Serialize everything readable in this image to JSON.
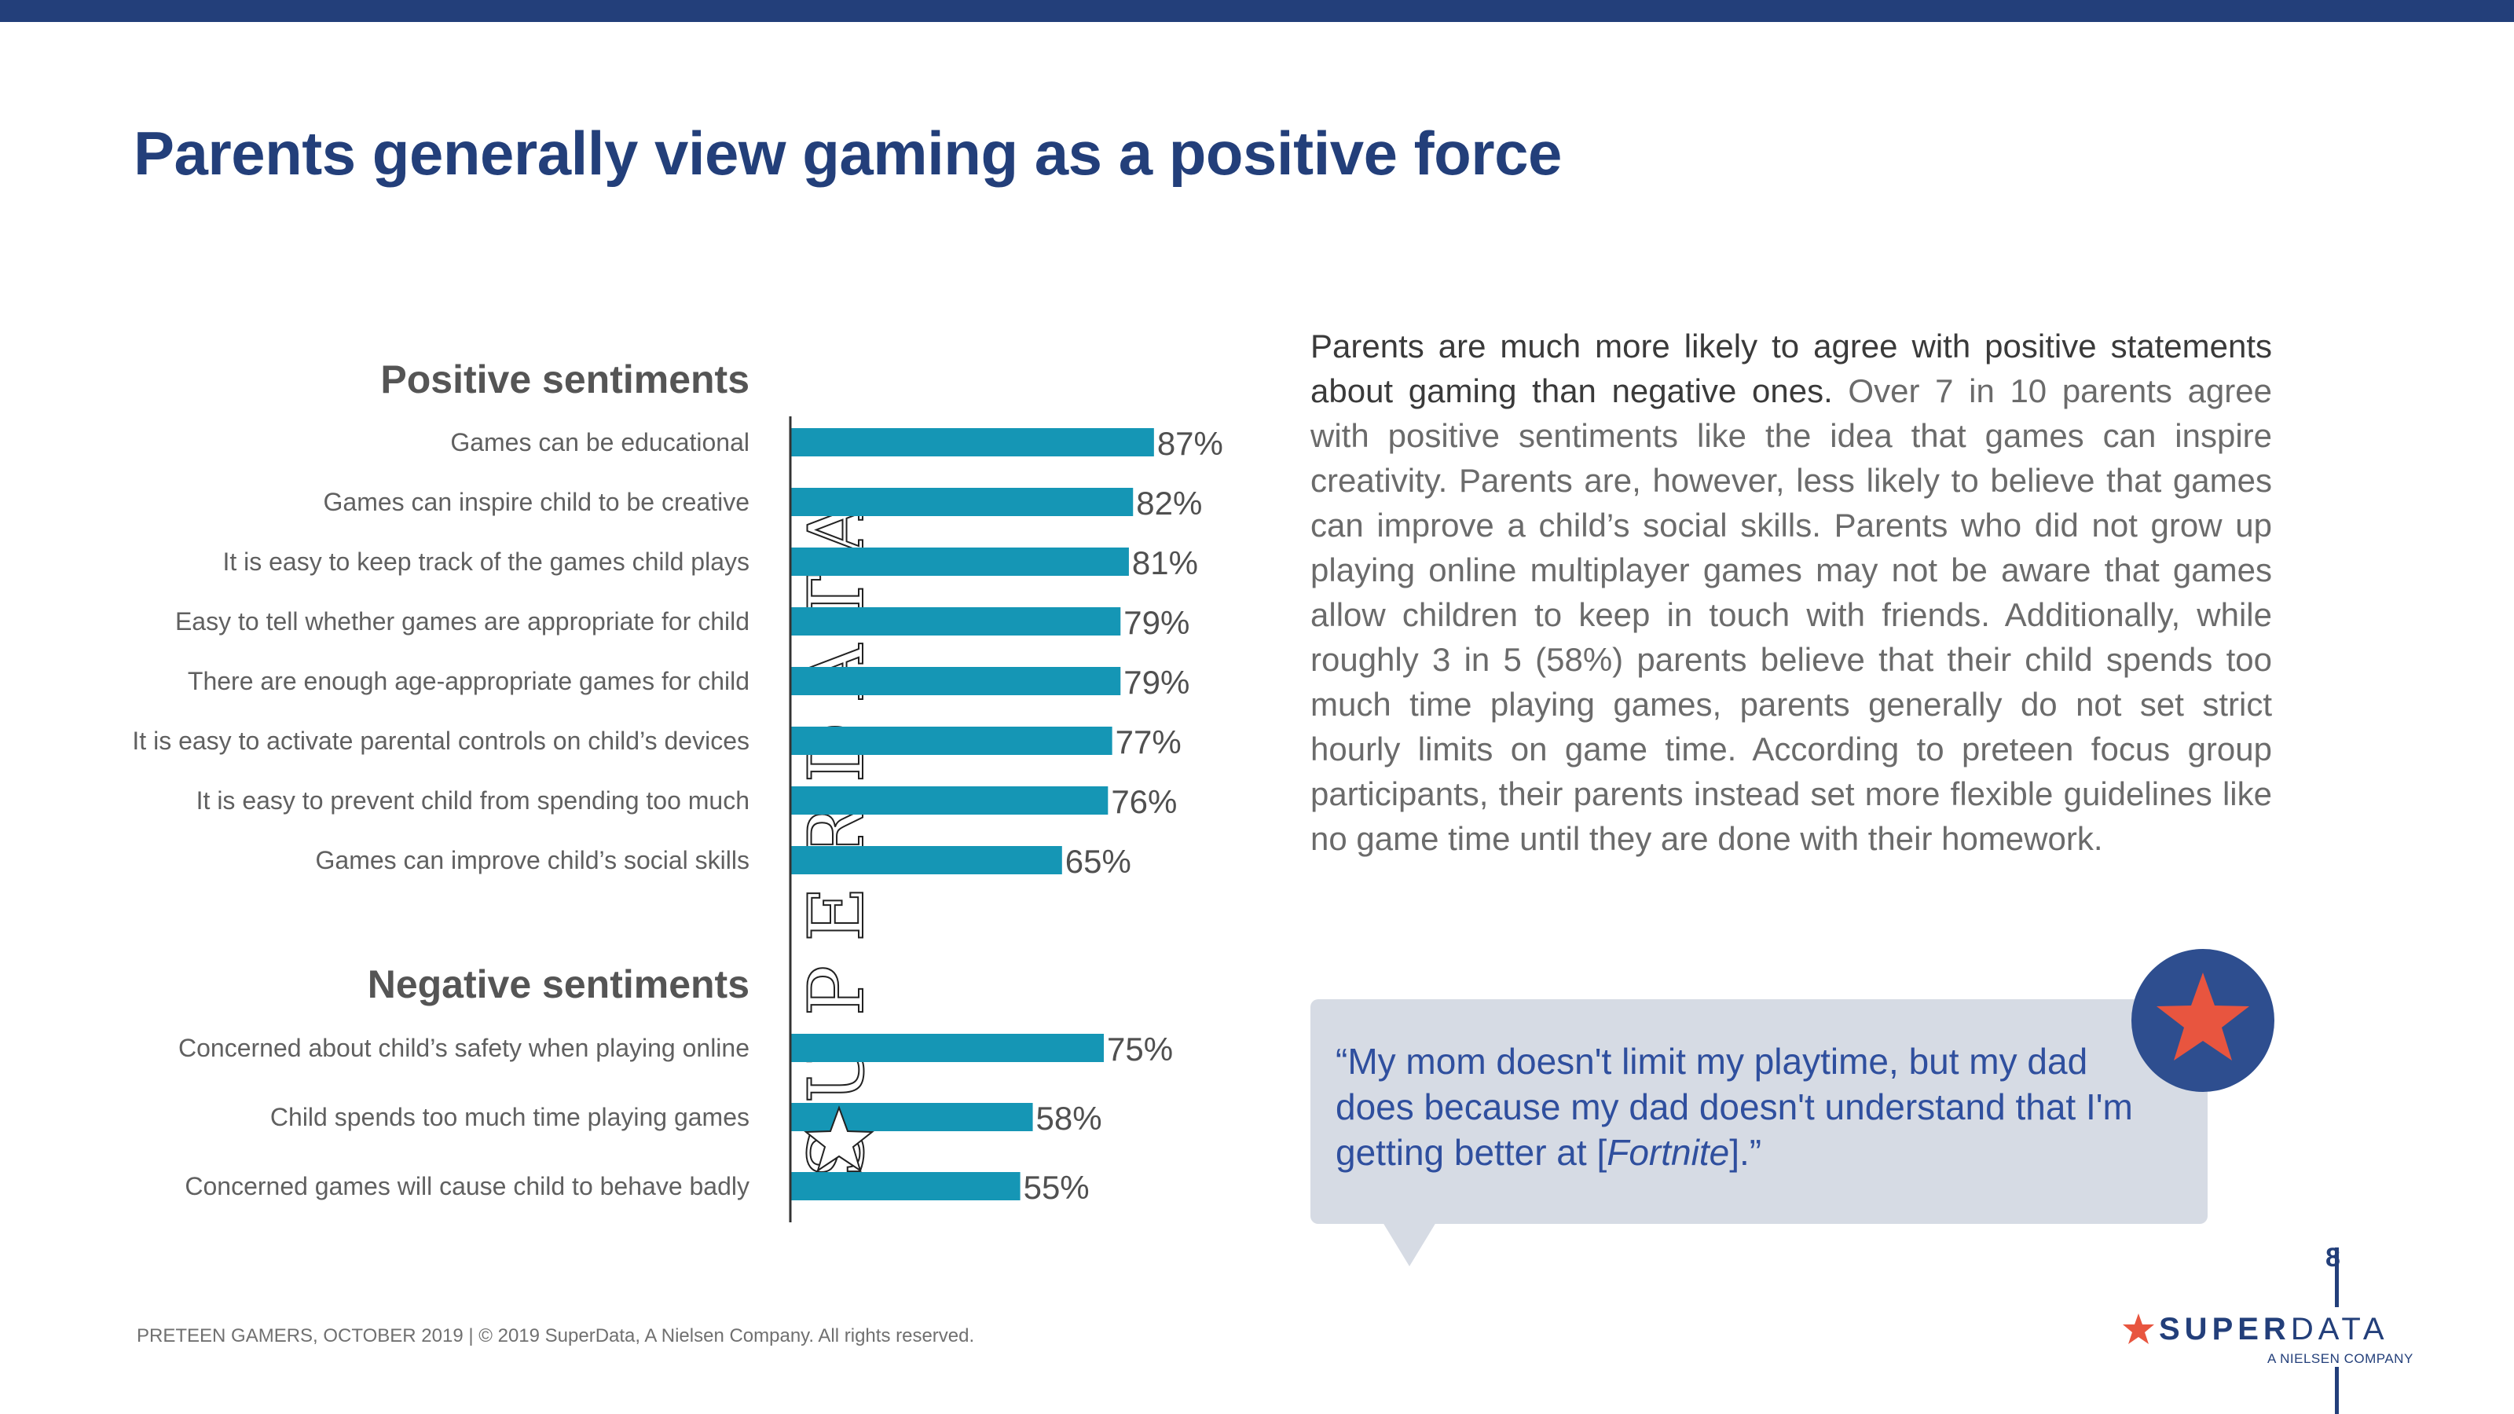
{
  "title": "Parents generally view gaming as a positive force",
  "chart_data": [
    {
      "type": "bar",
      "orientation": "horizontal",
      "title": "Positive sentiments",
      "categories": [
        "Games can be educational",
        "Games can inspire child to be creative",
        "It is easy to keep track of the games child plays",
        "Easy to tell whether games are appropriate for child",
        "There are enough age-appropriate games for child",
        "It is easy to activate parental controls on child’s devices",
        "It is easy to prevent child from spending too much",
        "Games can improve child’s social skills"
      ],
      "values": [
        87,
        82,
        81,
        79,
        79,
        77,
        76,
        65
      ],
      "value_labels": [
        "87%",
        "82%",
        "81%",
        "79%",
        "79%",
        "77%",
        "76%",
        "65%"
      ],
      "unit": "%",
      "xlim": [
        0,
        100
      ],
      "bar_color": "#1596b5"
    },
    {
      "type": "bar",
      "orientation": "horizontal",
      "title": "Negative sentiments",
      "categories": [
        "Concerned about child’s safety when playing online",
        "Child spends too much time playing games",
        "Concerned games will cause child to behave badly"
      ],
      "values": [
        75,
        58,
        55
      ],
      "value_labels": [
        "75%",
        "58%",
        "55%"
      ],
      "unit": "%",
      "xlim": [
        0,
        100
      ],
      "bar_color": "#1596b5"
    }
  ],
  "watermark": "SUPERDATA",
  "paragraph": {
    "lead": "Parents are much more likely to agree with positive statements about gaming than negative ones.",
    "body": " Over 7 in 10 parents agree with positive sentiments like the idea that games can inspire creativity. Parents are, however, less likely to believe that games can improve a child’s social skills. Parents who did not grow up playing online multiplayer games may not be aware that games allow children to keep in touch with friends. Additionally, while roughly 3 in 5 (58%) parents believe that their child spends too much time playing games, parents generally do not set strict hourly limits on game time. According to preteen focus group participants, their parents instead set more flexible guidelines like no game time until they are done with their homework."
  },
  "quote": {
    "before": "“My mom doesn't limit my playtime, but my dad does because my dad doesn't understand that I'm getting better at [",
    "emphasis": "Fortnite",
    "after": "].”"
  },
  "page_number": "8",
  "logo": {
    "bold": "SUPER",
    "light": "DATA",
    "subtitle": "A NIELSEN COMPANY"
  },
  "footer": "PRETEEN GAMERS, OCTOBER 2019  |  © 2019 SuperData, A Nielsen Company. All rights reserved.",
  "colors": {
    "navy": "#233f7a",
    "bar": "#1596b5",
    "star": "#e8553f",
    "quote_text": "#2f4f9e",
    "quote_bg": "#d6dbe4"
  }
}
